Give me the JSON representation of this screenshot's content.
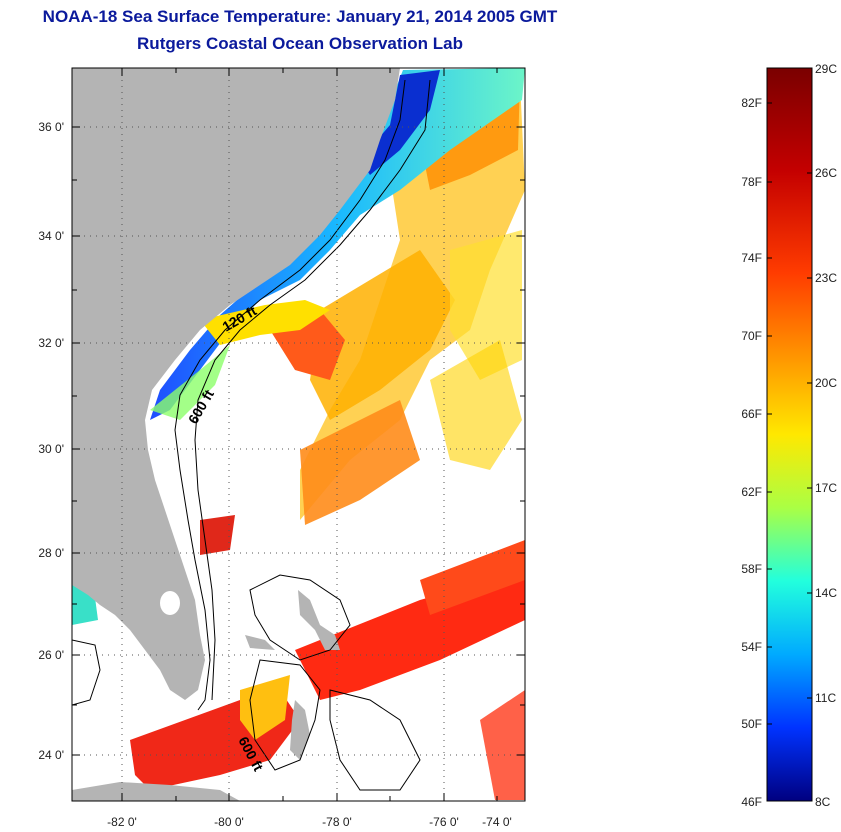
{
  "header": {
    "title": "NOAA-18 Sea Surface Temperature:  January 21, 2014 2005 GMT",
    "subtitle": "Rutgers Coastal Ocean Observation Lab"
  },
  "map": {
    "lat_ticks": [
      "36 0'",
      "34 0'",
      "32 0'",
      "30 0'",
      "28 0'",
      "26 0'",
      "24 0'"
    ],
    "lon_ticks": [
      "-82 0'",
      "-80 0'",
      "-78 0'",
      "-76 0'",
      "-74 0'"
    ],
    "contour_labels": [
      "120 ft",
      "600 ft",
      "600 ft"
    ],
    "land_color": "#b4b4b4",
    "cloud_color": "#ffffff"
  },
  "colorbar": {
    "f_labels": [
      "82F",
      "78F",
      "74F",
      "70F",
      "66F",
      "62F",
      "58F",
      "54F",
      "50F",
      "46F"
    ],
    "c_labels": [
      "29C",
      "26C",
      "23C",
      "20C",
      "17C",
      "14C",
      "11C",
      "8C"
    ],
    "colors": [
      "#7a0000",
      "#d40000",
      "#ff4500",
      "#ff9a00",
      "#ffe800",
      "#aaff44",
      "#22ffdd",
      "#00aaff",
      "#0033ff",
      "#000080"
    ]
  }
}
